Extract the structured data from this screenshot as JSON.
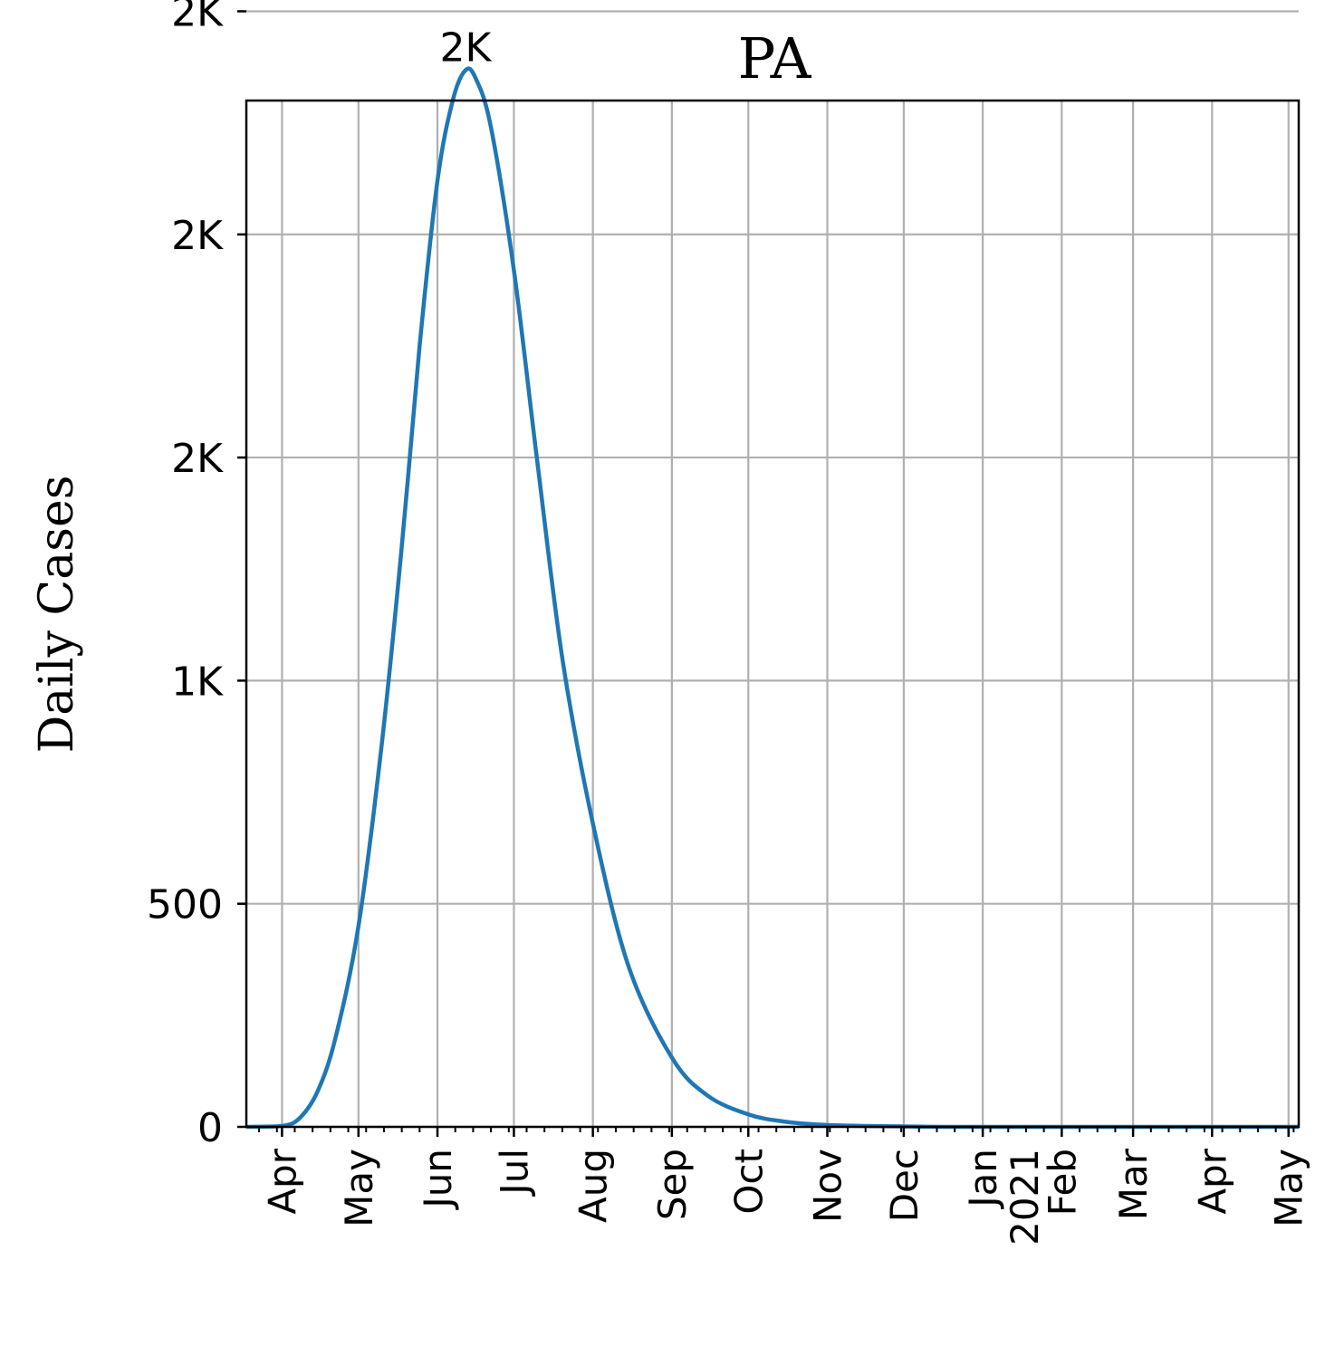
{
  "chart_data": {
    "type": "line",
    "title": "PA",
    "ylabel": "Daily Cases",
    "xlabel": "",
    "grid": true,
    "x_range": [
      "2020-03-18",
      "2021-05-05"
    ],
    "ylim": [
      0,
      2300
    ],
    "y_ticks": [
      {
        "value": 0,
        "label": "0"
      },
      {
        "value": 500,
        "label": "500"
      },
      {
        "value": 1000,
        "label": "1K"
      },
      {
        "value": 1500,
        "label": "2K"
      },
      {
        "value": 2000,
        "label": "2K"
      },
      {
        "value": 2500,
        "label": "2K"
      }
    ],
    "x_ticks": [
      {
        "date": "2020-04-01",
        "label": "Apr"
      },
      {
        "date": "2020-05-01",
        "label": "May"
      },
      {
        "date": "2020-06-01",
        "label": "Jun"
      },
      {
        "date": "2020-07-01",
        "label": "Jul"
      },
      {
        "date": "2020-08-01",
        "label": "Aug"
      },
      {
        "date": "2020-09-01",
        "label": "Sep"
      },
      {
        "date": "2020-10-01",
        "label": "Oct"
      },
      {
        "date": "2020-11-01",
        "label": "Nov"
      },
      {
        "date": "2020-12-01",
        "label": "Dec"
      },
      {
        "date": "2021-01-01",
        "label": "Jan\n2021"
      },
      {
        "date": "2021-02-01",
        "label": "Feb"
      },
      {
        "date": "2021-03-01",
        "label": "Mar"
      },
      {
        "date": "2021-04-01",
        "label": "Apr"
      },
      {
        "date": "2021-05-01",
        "label": "May"
      }
    ],
    "series": [
      {
        "color": "#1f77b4",
        "points": [
          {
            "x": "2020-03-18",
            "y": 0
          },
          {
            "x": "2020-04-01",
            "y": 2
          },
          {
            "x": "2020-04-08",
            "y": 20
          },
          {
            "x": "2020-04-15",
            "y": 80
          },
          {
            "x": "2020-04-22",
            "y": 200
          },
          {
            "x": "2020-05-01",
            "y": 450
          },
          {
            "x": "2020-05-10",
            "y": 850
          },
          {
            "x": "2020-05-18",
            "y": 1300
          },
          {
            "x": "2020-05-25",
            "y": 1750
          },
          {
            "x": "2020-06-01",
            "y": 2120
          },
          {
            "x": "2020-06-07",
            "y": 2300
          },
          {
            "x": "2020-06-12",
            "y": 2368
          },
          {
            "x": "2020-06-16",
            "y": 2350
          },
          {
            "x": "2020-06-22",
            "y": 2240
          },
          {
            "x": "2020-07-01",
            "y": 1920
          },
          {
            "x": "2020-07-10",
            "y": 1500
          },
          {
            "x": "2020-07-20",
            "y": 1050
          },
          {
            "x": "2020-08-01",
            "y": 680
          },
          {
            "x": "2020-08-15",
            "y": 360
          },
          {
            "x": "2020-09-01",
            "y": 155
          },
          {
            "x": "2020-09-15",
            "y": 70
          },
          {
            "x": "2020-10-01",
            "y": 28
          },
          {
            "x": "2020-10-15",
            "y": 12
          },
          {
            "x": "2020-11-01",
            "y": 4
          },
          {
            "x": "2020-12-01",
            "y": 1
          },
          {
            "x": "2021-01-01",
            "y": 0
          },
          {
            "x": "2021-05-05",
            "y": 0
          }
        ]
      }
    ],
    "annotations": [
      {
        "x": "2020-06-12",
        "y": 2368,
        "label": "2K"
      }
    ]
  }
}
